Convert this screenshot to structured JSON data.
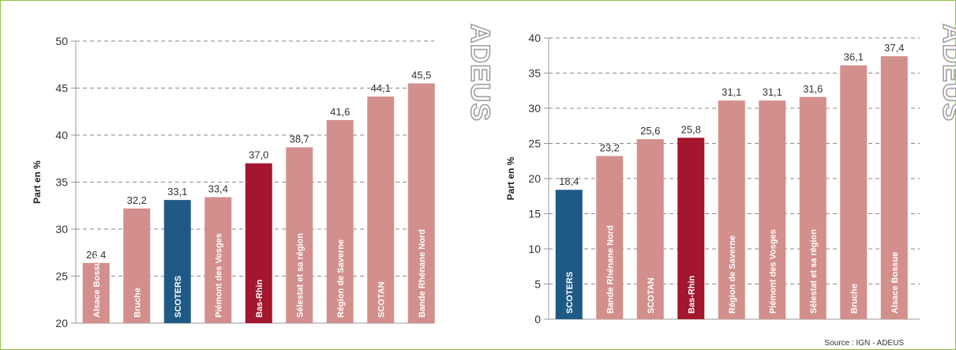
{
  "source_note": "Source : IGN - ADEUS",
  "colors": {
    "default": "#d38f8c",
    "scoters": "#1f5a86",
    "bas_rhin": "#a3162e",
    "grid": "#8a8a8a",
    "axis": "#999999",
    "brand": "#9a9a9a"
  },
  "chart_data": [
    {
      "type": "bar",
      "ylabel": "Part en %",
      "brand": "ADEUS",
      "ylim": [
        20,
        50
      ],
      "yticks": [
        20,
        25,
        30,
        35,
        40,
        45,
        50
      ],
      "grid": true,
      "categories": [
        "Alsace Bossue",
        "Bruche",
        "SCOTERS",
        "Piémont des Vosges",
        "Bas-Rhin",
        "Sélestat et sa région",
        "Région de Saverne",
        "SCOTAN",
        "Bande Rhénane Nord"
      ],
      "values": [
        26.4,
        32.2,
        33.1,
        33.4,
        37.0,
        38.7,
        41.6,
        44.1,
        45.5
      ],
      "value_labels": [
        "26,4",
        "32,2",
        "33,1",
        "33,4",
        "37,0",
        "38,7",
        "41,6",
        "44,1",
        "45,5"
      ],
      "colors": [
        "default",
        "default",
        "scoters",
        "default",
        "bas_rhin",
        "default",
        "default",
        "default",
        "default"
      ]
    },
    {
      "type": "bar",
      "ylabel": "Part en %",
      "brand": "ADEUS",
      "ylim": [
        0,
        40
      ],
      "yticks": [
        0,
        5,
        10,
        15,
        20,
        25,
        30,
        35,
        40
      ],
      "grid": true,
      "categories": [
        "SCOTERS",
        "Bande Rhénane Nord",
        "SCOTAN",
        "Bas-Rhin",
        "Région de Saverne",
        "Piémont des Vosges",
        "Sélestat et sa région",
        "Bruche",
        "Alsace Bossue"
      ],
      "values": [
        18.4,
        23.2,
        25.6,
        25.8,
        31.1,
        31.1,
        31.6,
        36.1,
        37.4
      ],
      "value_labels": [
        "18,4",
        "23,2",
        "25,6",
        "25,8",
        "31,1",
        "31,1",
        "31,6",
        "36,1",
        "37,4"
      ],
      "colors": [
        "scoters",
        "default",
        "default",
        "bas_rhin",
        "default",
        "default",
        "default",
        "default",
        "default"
      ]
    }
  ]
}
